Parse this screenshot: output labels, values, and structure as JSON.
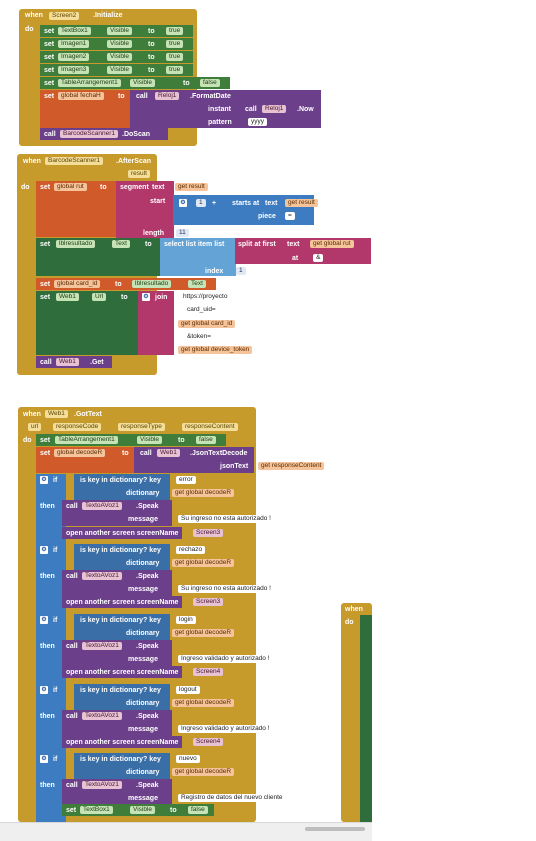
{
  "screen_init": {
    "when": "when",
    "component": "Screen2",
    "event": ".Initialize",
    "do": "do",
    "rows": [
      {
        "set": "set",
        "comp": "TextBox1",
        "prop": "Visible",
        "to": "to",
        "val": "true"
      },
      {
        "set": "set",
        "comp": "Imagen1",
        "prop": "Visible",
        "to": "to",
        "val": "true"
      },
      {
        "set": "set",
        "comp": "Imagen2",
        "prop": "Visible",
        "to": "to",
        "val": "true"
      },
      {
        "set": "set",
        "comp": "Imagen3",
        "prop": "Visible",
        "to": "to",
        "val": "true"
      },
      {
        "set": "set",
        "comp": "TableArrangement1",
        "prop": "Visible",
        "to": "to",
        "val": "false"
      }
    ],
    "fecha": {
      "set": "set",
      "var": "global fechaH",
      "to": "to",
      "call": "call",
      "comp": "Reloj1",
      "method": ".FormatDate",
      "instant": "instant",
      "call2": "call",
      "comp2": "Reloj1",
      "method2": ".Now",
      "pattern": "pattern",
      "pattern_val": "yyyy"
    },
    "scan": {
      "call": "call",
      "comp": "BarcodeScanner1",
      "method": ".DoScan"
    }
  },
  "after_scan": {
    "when": "when",
    "component": "BarcodeScanner1",
    "event": ".AfterScan",
    "param": "result",
    "do": "do",
    "rut": {
      "set": "set",
      "var": "global rut",
      "to": "to",
      "segment": "segment",
      "text": "text",
      "get": "get",
      "get_var": "result",
      "start": "start",
      "one": "1",
      "plus": "+",
      "starts_at": "starts at",
      "text2": "text",
      "get2": "get",
      "get_var2": "result",
      "piece": "piece",
      "piece_val": "=",
      "length": "length",
      "length_val": "11"
    },
    "lbl": {
      "set": "set",
      "comp": "lblresultado",
      "prop": "Text",
      "to": "to",
      "select": "select list item list",
      "split": "split at first",
      "text": "text",
      "get": "get",
      "get_var": "global rut",
      "at": "at",
      "at_val": "&",
      "index": "index",
      "index_val": "1"
    },
    "card": {
      "set": "set",
      "var": "global card_id",
      "to": "to",
      "comp": "lblresultado",
      "prop": "Text"
    },
    "url": {
      "set": "set",
      "comp": "Web1",
      "prop": "Url",
      "to": "to",
      "join": "join",
      "items": [
        "https://proyecto",
        "card_uid=",
        "get global card_id",
        "&token=",
        "get global device_token"
      ]
    },
    "get_call": {
      "call": "call",
      "comp": "Web1",
      "method": ".Get"
    }
  },
  "got_text": {
    "when": "when",
    "component": "Web1",
    "event": ".GotText",
    "params": [
      "url",
      "responseCode",
      "responseType",
      "responseContent"
    ],
    "do": "do",
    "hide": {
      "set": "set",
      "comp": "TableArrangement1",
      "prop": "Visible",
      "to": "to",
      "val": "false"
    },
    "decode": {
      "set": "set",
      "var": "global decodeR",
      "to": "to",
      "call": "call",
      "comp": "Web1",
      "method": ".JsonTextDecode",
      "json": "jsonText",
      "get": "get",
      "get_var": "responseContent"
    },
    "ifs": [
      {
        "if": "if",
        "is_key": "is key in dictionary? key",
        "key": "error",
        "dict": "dictionary",
        "get": "get",
        "dict_var": "global decodeR",
        "then": "then",
        "call": "call",
        "comp": "TextoAVoz1",
        "method": ".Speak",
        "message": "message",
        "msg": "Su ingreso no esta autorizado !",
        "open": "open another screen  screenName",
        "screen": "Screen3"
      },
      {
        "if": "if",
        "is_key": "is key in dictionary? key",
        "key": "rechazo",
        "dict": "dictionary",
        "get": "get",
        "dict_var": "global decodeR",
        "then": "then",
        "call": "call",
        "comp": "TextoAVoz1",
        "method": ".Speak",
        "message": "message",
        "msg": "Su ingreso no esta autorizado !",
        "open": "open another screen  screenName",
        "screen": "Screen3"
      },
      {
        "if": "if",
        "is_key": "is key in dictionary? key",
        "key": "login",
        "dict": "dictionary",
        "get": "get",
        "dict_var": "global decodeR",
        "then": "then",
        "call": "call",
        "comp": "TextoAVoz1",
        "method": ".Speak",
        "message": "message",
        "msg": "Ingreso validado y autorizado !",
        "open": "open another screen  screenName",
        "screen": "Screen4"
      },
      {
        "if": "if",
        "is_key": "is key in dictionary? key",
        "key": "logout",
        "dict": "dictionary",
        "get": "get",
        "dict_var": "global decodeR",
        "then": "then",
        "call": "call",
        "comp": "TextoAVoz1",
        "method": ".Speak",
        "message": "message",
        "msg": "Ingreso validado y autorizado !",
        "open": "open another screen  screenName",
        "screen": "Screen4"
      },
      {
        "if": "if",
        "is_key": "is key in dictionary? key",
        "key": "nuevo",
        "dict": "dictionary",
        "get": "get",
        "dict_var": "global decodeR",
        "then": "then",
        "call": "call",
        "comp": "TextoAVoz1",
        "method": ".Speak",
        "message": "message",
        "msg": "Registro de datos del nuevo cliente",
        "open": "",
        "screen": ""
      }
    ],
    "last_set": {
      "set": "set",
      "comp": "TextBox1",
      "prop": "Visible",
      "to": "to",
      "val": "false"
    }
  },
  "side_block": {
    "when": "when",
    "do": "do"
  }
}
